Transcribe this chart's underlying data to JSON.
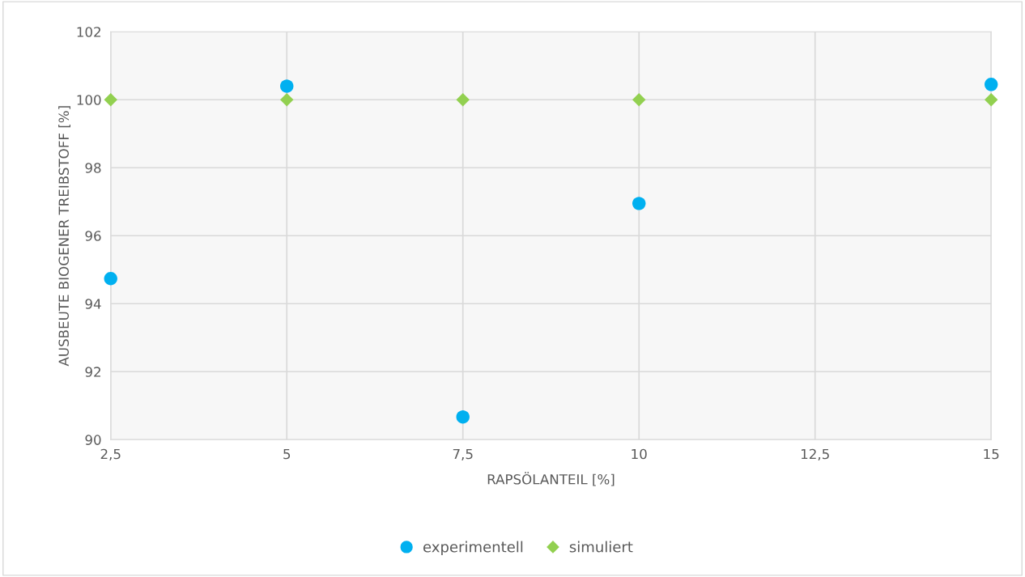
{
  "chart_data": {
    "type": "scatter",
    "xlabel": "RAPSÖLANTEIL [%]",
    "ylabel": "AUSBEUTE BIOGENER TREIBSTOFF [%]",
    "xlim": [
      2.5,
      15
    ],
    "xticks": [
      {
        "value": 2.5,
        "label": "2,5"
      },
      5,
      {
        "value": 7.5,
        "label": "7,5"
      },
      10,
      {
        "value": 12.5,
        "label": "12,5"
      },
      15
    ],
    "ylim": [
      90,
      102
    ],
    "yticks": [
      90,
      92,
      94,
      96,
      98,
      100,
      102
    ],
    "grid": true,
    "legend": "bottom",
    "series": [
      {
        "name": "experimentell",
        "color": "#00b0f0",
        "marker": "circle",
        "x": [
          2.5,
          5,
          7.5,
          10,
          15
        ],
        "values": [
          94.74,
          100.4,
          90.67,
          96.95,
          100.45
        ]
      },
      {
        "name": "simuliert",
        "color": "#92d050",
        "marker": "diamond",
        "x": [
          2.5,
          5,
          7.5,
          10,
          15
        ],
        "values": [
          100,
          100,
          100,
          100,
          100
        ]
      }
    ]
  }
}
